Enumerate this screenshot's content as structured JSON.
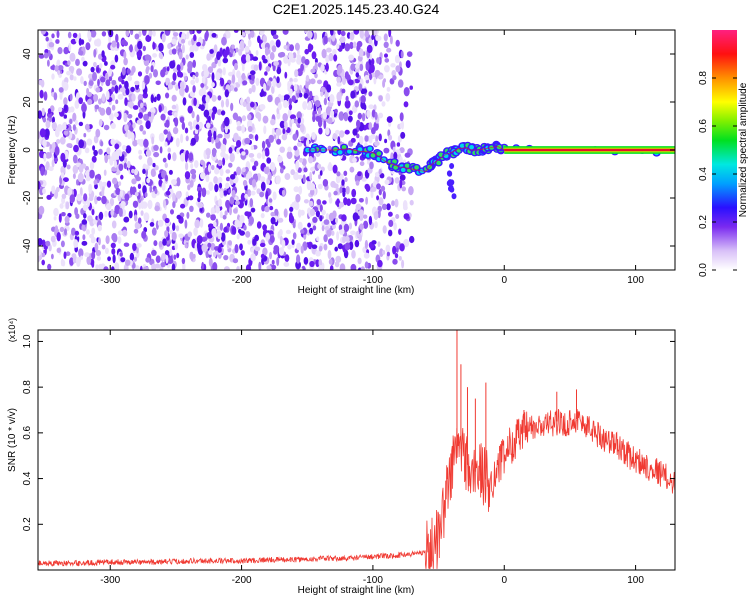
{
  "title": "C2E1.2025.145.23.40.G24",
  "colors": {
    "snr_line": "#f03a32",
    "frequency_line": "#e8102a"
  },
  "chart_data": [
    {
      "type": "heatmap",
      "xlabel": "Height of straight line (km)",
      "ylabel": "Frequency (Hz)",
      "xlim": [
        -355,
        130
      ],
      "ylim": [
        -50,
        50
      ],
      "x_ticks": [
        -300,
        -200,
        -100,
        0,
        100
      ],
      "y_ticks": [
        -40,
        -20,
        0,
        20,
        40
      ],
      "x_tick_labels": [
        "-300",
        "-200",
        "-100",
        "0",
        "100"
      ],
      "y_tick_labels": [
        "-40",
        "-20",
        "0",
        "20",
        "40"
      ],
      "colorbar": {
        "label": "Normalized spectral amplitude",
        "range": [
          0,
          1
        ],
        "ticks": [
          0.0,
          0.2,
          0.4,
          0.6,
          0.8
        ],
        "tick_labels": [
          "0.0",
          "0.2",
          "0.4",
          "0.6",
          "0.8"
        ],
        "colormap": "rainbow"
      },
      "noise_region": [
        -355,
        -70
      ],
      "signal_track": {
        "x": [
          -150,
          -130,
          -120,
          -110,
          -100,
          -90,
          -80,
          -70,
          -60,
          -55,
          -50,
          -45,
          -40,
          -35,
          -30,
          -25,
          -20,
          -15,
          -10,
          -5,
          0,
          130
        ],
        "y": [
          0,
          0,
          0.5,
          -0.5,
          -1,
          -5,
          -7,
          -8,
          -9,
          -6,
          -4,
          -2,
          -1,
          0.5,
          1,
          0,
          0,
          0.5,
          1,
          1.5,
          0,
          0
        ]
      }
    },
    {
      "type": "line",
      "xlabel": "Height of straight line (km)",
      "ylabel": "SNR (10 * v/v)",
      "y_multiplier": "(x10⁴)",
      "xlim": [
        -355,
        130
      ],
      "ylim": [
        0,
        1.05
      ],
      "x_ticks": [
        -300,
        -200,
        -100,
        0,
        100
      ],
      "y_ticks": [
        0.2,
        0.4,
        0.6,
        0.8,
        1.0
      ],
      "x_tick_labels": [
        "-300",
        "-200",
        "-100",
        "0",
        "100"
      ],
      "y_tick_labels": [
        "0.2",
        "0.4",
        "0.6",
        "0.8",
        "1.0"
      ],
      "series": [
        {
          "x": [
            -355,
            -340,
            -320,
            -300,
            -280,
            -260,
            -240,
            -220,
            -200,
            -180,
            -160,
            -140,
            -120,
            -100,
            -90,
            -80,
            -70,
            -60,
            -55,
            -50,
            -45,
            -40,
            -35,
            -30,
            -25,
            -20,
            -15,
            -10,
            -5,
            0,
            5,
            10,
            15,
            20,
            25,
            30,
            35,
            40,
            45,
            50,
            55,
            60,
            65,
            70,
            75,
            80,
            85,
            90,
            95,
            100,
            105,
            110,
            115,
            120,
            125,
            130
          ],
          "y": [
            0.03,
            0.03,
            0.03,
            0.035,
            0.035,
            0.035,
            0.04,
            0.04,
            0.04,
            0.045,
            0.045,
            0.05,
            0.05,
            0.06,
            0.06,
            0.065,
            0.07,
            0.08,
            0.1,
            0.15,
            0.3,
            0.45,
            0.55,
            0.5,
            0.4,
            0.45,
            0.4,
            0.38,
            0.45,
            0.5,
            0.55,
            0.58,
            0.6,
            0.62,
            0.62,
            0.63,
            0.64,
            0.65,
            0.63,
            0.65,
            0.66,
            0.64,
            0.62,
            0.6,
            0.58,
            0.56,
            0.55,
            0.53,
            0.5,
            0.48,
            0.47,
            0.45,
            0.44,
            0.42,
            0.4,
            0.38
          ],
          "spikes": [
            {
              "x": -36,
              "y": 1.05
            },
            {
              "x": -33,
              "y": 0.9
            },
            {
              "x": -28,
              "y": 0.8
            },
            {
              "x": -22,
              "y": 0.75
            },
            {
              "x": -14,
              "y": 0.82
            },
            {
              "x": 15,
              "y": 0.7
            },
            {
              "x": 40,
              "y": 0.78
            },
            {
              "x": 55,
              "y": 0.79
            }
          ]
        }
      ]
    }
  ]
}
